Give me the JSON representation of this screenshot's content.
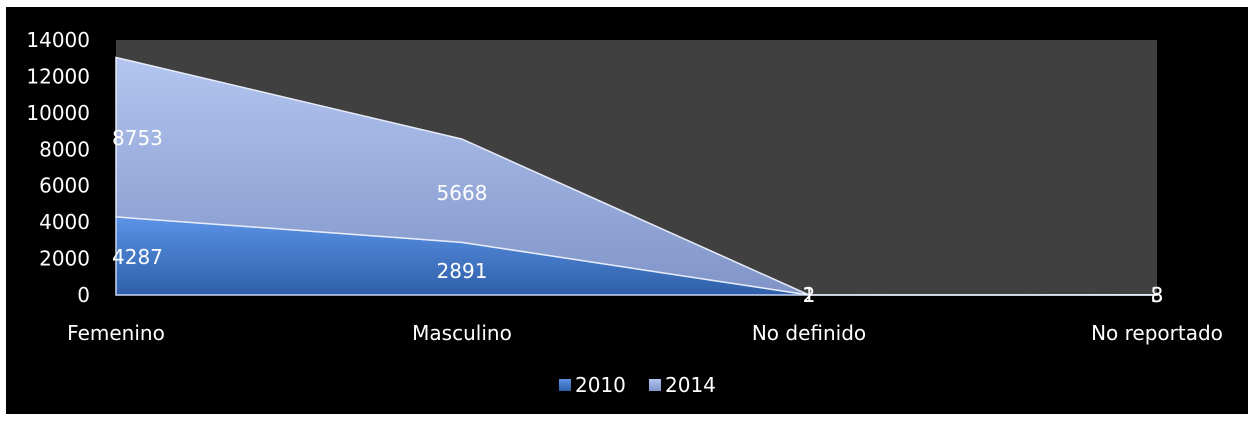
{
  "chart_data": {
    "type": "area",
    "stacked": true,
    "categories": [
      "Femenino",
      "Masculino",
      "No definido",
      "No reportado"
    ],
    "series": [
      {
        "name": "2010",
        "values": [
          4287,
          2891,
          1,
          3
        ],
        "color": "#4a7fd4"
      },
      {
        "name": "2014",
        "values": [
          8753,
          5668,
          2,
          8
        ],
        "color": "#9fb4e8"
      }
    ],
    "data_labels": {
      "2010": [
        "4287",
        "2891",
        "1",
        "3"
      ],
      "2014": [
        "8753",
        "5668",
        "2",
        "8"
      ]
    },
    "y_ticks": [
      "0",
      "2000",
      "4000",
      "6000",
      "8000",
      "10000",
      "12000",
      "14000"
    ],
    "ylim": [
      0,
      14000
    ],
    "grid": false,
    "legend": "bottom-center",
    "plot_background": "#404040",
    "chart_background": "#000000"
  }
}
